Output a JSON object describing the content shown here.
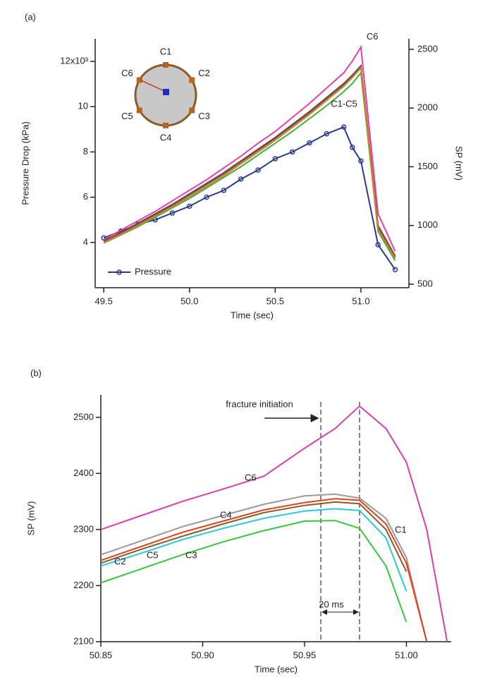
{
  "chart_data": [
    {
      "type": "line",
      "panel_label": "(a)",
      "xlabel": "Time (sec)",
      "ylabel": "Pressure Drop (kPa)",
      "y2label": "SP (mV)",
      "xlim": [
        49.45,
        51.28
      ],
      "xticks": [
        49.5,
        {
          "value": 50.0,
          "label": "50.0"
        },
        50.5,
        {
          "value": 51.0,
          "label": "51.0"
        }
      ],
      "ylim": [
        2,
        13
      ],
      "yticks": [
        4,
        6,
        8,
        10,
        {
          "value": 12,
          "label": "12x10³"
        }
      ],
      "y2lim": [
        470,
        2590
      ],
      "y2ticks": [
        500,
        1000,
        1500,
        2000,
        2500
      ],
      "legend": "lower left",
      "annotations": [
        "C1-C5"
      ],
      "inset_labels": [
        "C1",
        "C2",
        "C3",
        "C4",
        "C5",
        "C6"
      ],
      "x": [
        49.5,
        49.6,
        49.7,
        49.8,
        49.9,
        50.0,
        50.1,
        50.2,
        50.3,
        50.4,
        50.5,
        50.6,
        50.7,
        50.8,
        50.9,
        50.95,
        51.0,
        51.1,
        51.2
      ],
      "series": [
        {
          "name": "Pressure",
          "color": "#2b3a8f",
          "marker": "o",
          "values": [
            4.2,
            4.5,
            4.8,
            5.0,
            5.3,
            5.6,
            6.0,
            6.3,
            6.8,
            7.2,
            7.7,
            8.0,
            8.4,
            8.8,
            9.1,
            8.2,
            7.6,
            3.9,
            2.8
          ]
        },
        {
          "name": "C6",
          "color": "#e040b0",
          "axis": "y2",
          "values": [
            880,
            960,
            1040,
            1120,
            1210,
            1300,
            1390,
            1490,
            1590,
            1700,
            1800,
            1920,
            2040,
            2170,
            2300,
            2400,
            2520,
            1100,
            780
          ]
        },
        {
          "color": "#c0392b",
          "axis": "y2",
          "values": [
            870,
            940,
            1020,
            1100,
            1180,
            1270,
            1360,
            1450,
            1550,
            1650,
            1750,
            1860,
            1970,
            2090,
            2210,
            2280,
            2360,
            1000,
            740
          ]
        },
        {
          "color": "#8a7a5a",
          "axis": "y2",
          "values": [
            860,
            930,
            1010,
            1090,
            1170,
            1260,
            1350,
            1440,
            1540,
            1640,
            1740,
            1850,
            1960,
            2080,
            2200,
            2270,
            2350,
            980,
            730
          ]
        },
        {
          "color": "#3cb043",
          "axis": "y2",
          "values": [
            850,
            920,
            990,
            1070,
            1150,
            1230,
            1320,
            1410,
            1500,
            1600,
            1700,
            1800,
            1910,
            2020,
            2140,
            2210,
            2300,
            950,
            700
          ]
        },
        {
          "color": "#555555",
          "axis": "y2",
          "values": [
            865,
            935,
            1015,
            1095,
            1175,
            1265,
            1355,
            1445,
            1545,
            1645,
            1745,
            1855,
            1965,
            2085,
            2205,
            2280,
            2360,
            990,
            735
          ]
        },
        {
          "color": "#e07b20",
          "axis": "y2",
          "values": [
            855,
            925,
            1000,
            1080,
            1160,
            1245,
            1335,
            1425,
            1525,
            1625,
            1725,
            1835,
            1945,
            2065,
            2185,
            2260,
            2340,
            970,
            720
          ]
        }
      ]
    },
    {
      "type": "line",
      "panel_label": "(b)",
      "xlabel": "Time (sec)",
      "ylabel": "SP (mV)",
      "xlim": [
        50.85,
        51.022
      ],
      "xticks": [
        {
          "value": 50.85,
          "label": "50.85"
        },
        {
          "value": 50.9,
          "label": "50.90"
        },
        50.95,
        {
          "value": 51.0,
          "label": "51.00"
        }
      ],
      "ylim": [
        2100,
        2540
      ],
      "yticks": [
        2100,
        2200,
        2300,
        2400,
        2500
      ],
      "vlines": [
        50.958,
        50.977
      ],
      "annotations": [
        "fracture initiation",
        "20 ms"
      ],
      "x": [
        50.85,
        50.87,
        50.89,
        50.91,
        50.93,
        50.95,
        50.965,
        50.977,
        50.99,
        51.0,
        51.01,
        51.02
      ],
      "series": [
        {
          "name": "C6",
          "color": "#d63fae",
          "values": [
            2300,
            2325,
            2350,
            2372,
            2395,
            2445,
            2480,
            2520,
            2480,
            2420,
            2300,
            2100
          ]
        },
        {
          "name": "C4",
          "color": "#999999",
          "values": [
            2255,
            2280,
            2305,
            2325,
            2345,
            2360,
            2363,
            2356,
            2320,
            2250,
            2100,
            null
          ]
        },
        {
          "name": "C1",
          "color": "#e0401b",
          "values": [
            2245,
            2270,
            2295,
            2315,
            2335,
            2348,
            2355,
            2352,
            2310,
            2240,
            2100,
            null
          ]
        },
        {
          "name": "C5",
          "color": "#8b5a2b",
          "values": [
            2240,
            2265,
            2288,
            2310,
            2330,
            2343,
            2349,
            2346,
            2300,
            2225,
            null,
            null
          ]
        },
        {
          "name": "C2",
          "color": "#28c8d8",
          "values": [
            2235,
            2258,
            2282,
            2302,
            2320,
            2333,
            2337,
            2334,
            2285,
            2190,
            null,
            null
          ]
        },
        {
          "name": "C3",
          "color": "#3cc43c",
          "values": [
            2205,
            2230,
            2255,
            2278,
            2298,
            2315,
            2316,
            2302,
            2235,
            2135,
            null,
            null
          ]
        }
      ]
    }
  ]
}
